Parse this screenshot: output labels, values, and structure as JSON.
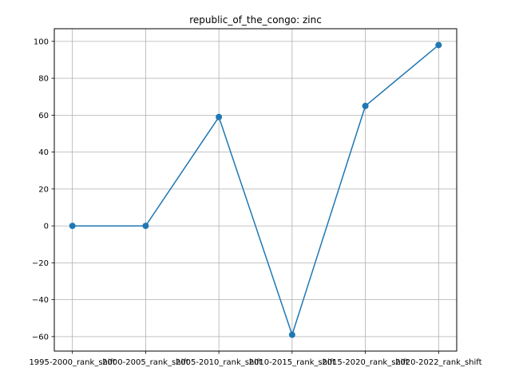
{
  "chart_data": {
    "type": "line",
    "title": "republic_of_the_congo: zinc",
    "xlabel": "",
    "ylabel": "",
    "categories": [
      "1995-2000_rank_shift",
      "2000-2005_rank_shift",
      "2005-2010_rank_shift",
      "2010-2015_rank_shift",
      "2015-2020_rank_shift",
      "2020-2022_rank_shift"
    ],
    "series": [
      {
        "values": [
          0,
          0,
          59,
          -59,
          65,
          98
        ]
      }
    ],
    "ylim": [
      -67.85,
      106.85
    ],
    "yticks": [
      -60,
      -40,
      -20,
      0,
      20,
      40,
      60,
      80,
      100
    ],
    "ytick_labels": [
      "−60",
      "−40",
      "−20",
      "0",
      "20",
      "40",
      "60",
      "80",
      "100"
    ],
    "grid": true,
    "line_color": "#1f77b4",
    "marker": "circle"
  }
}
